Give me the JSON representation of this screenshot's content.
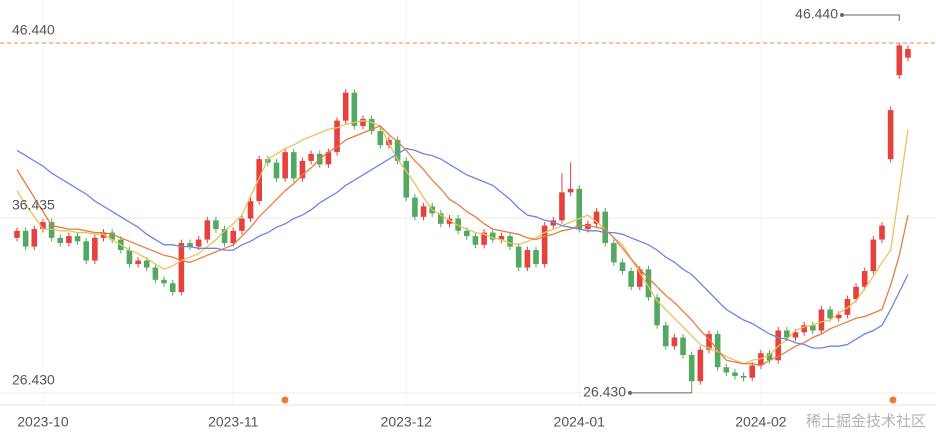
{
  "chart_data": {
    "type": "candlestick",
    "categories": [
      null,
      null,
      null,
      "2023-10",
      null,
      null,
      null,
      null,
      null,
      null,
      null,
      null,
      null,
      null,
      null,
      null,
      null,
      null,
      null,
      null,
      null,
      null,
      null,
      null,
      null,
      "2023-11",
      null,
      null,
      null,
      null,
      null,
      null,
      null,
      null,
      null,
      null,
      null,
      null,
      null,
      null,
      null,
      null,
      null,
      null,
      null,
      "2023-12",
      null,
      null,
      null,
      null,
      null,
      null,
      null,
      null,
      null,
      null,
      null,
      null,
      null,
      null,
      null,
      null,
      null,
      null,
      null,
      "2024-01",
      null,
      null,
      null,
      null,
      null,
      null,
      null,
      null,
      null,
      null,
      null,
      null,
      null,
      null,
      null,
      null,
      null,
      null,
      null,
      null,
      "2024-02",
      null,
      null,
      null,
      null,
      null,
      null,
      null,
      null,
      null,
      null,
      null,
      null,
      null,
      null,
      null,
      null,
      null
    ],
    "open": [
      35.3,
      35.7,
      34.8,
      35.8,
      36.2,
      35.3,
      35.0,
      35.4,
      35.1,
      34.0,
      35.3,
      35.6,
      35.2,
      34.6,
      33.8,
      34.0,
      33.6,
      32.9,
      32.7,
      32.2,
      35.0,
      34.8,
      35.2,
      36.3,
      35.8,
      35.0,
      35.7,
      36.4,
      37.4,
      39.8,
      39.6,
      38.7,
      40.2,
      38.7,
      39.7,
      40.1,
      39.5,
      40.2,
      42.0,
      43.6,
      41.7,
      42.1,
      41.4,
      40.6,
      40.9,
      39.7,
      37.6,
      36.5,
      37.1,
      36.7,
      36.1,
      36.4,
      35.7,
      35.4,
      34.9,
      35.6,
      35.2,
      35.4,
      34.8,
      33.6,
      34.6,
      33.8,
      36.0,
      36.3,
      37.9,
      38.1,
      35.8,
      36.1,
      36.8,
      35.0,
      33.9,
      33.4,
      32.5,
      33.5,
      31.9,
      30.3,
      29.1,
      29.6,
      28.6,
      27.1,
      28.9,
      29.8,
      27.9,
      27.6,
      27.4,
      27.3,
      28.0,
      28.7,
      28.3,
      30.0,
      29.6,
      29.9,
      30.3,
      30.0,
      31.2,
      30.7,
      30.9,
      31.8,
      32.5,
      33.4,
      35.2,
      39.8,
      44.6,
      45.6
    ],
    "high": [
      35.9,
      35.9,
      36.0,
      36.4,
      36.4,
      35.5,
      35.6,
      35.6,
      35.3,
      35.5,
      35.8,
      35.8,
      35.4,
      34.8,
      34.2,
      34.2,
      33.8,
      33.1,
      32.9,
      35.2,
      35.2,
      35.4,
      36.5,
      36.5,
      36.0,
      35.9,
      36.6,
      37.6,
      40.0,
      40.0,
      39.8,
      40.4,
      40.4,
      39.9,
      40.3,
      40.3,
      40.4,
      42.2,
      43.8,
      43.8,
      42.3,
      42.3,
      41.6,
      41.1,
      41.1,
      39.9,
      37.8,
      37.3,
      37.3,
      36.9,
      36.6,
      36.6,
      35.9,
      35.6,
      35.8,
      35.8,
      35.6,
      35.6,
      35.0,
      34.8,
      34.8,
      36.2,
      36.5,
      39.0,
      39.6,
      38.3,
      36.3,
      37.0,
      37.0,
      35.2,
      34.1,
      33.6,
      33.7,
      33.7,
      32.1,
      30.5,
      29.8,
      29.8,
      28.8,
      29.1,
      30.0,
      30.0,
      28.1,
      27.8,
      27.6,
      28.2,
      28.9,
      28.9,
      30.2,
      30.2,
      30.1,
      30.5,
      30.5,
      31.4,
      31.4,
      31.1,
      32.0,
      32.7,
      33.6,
      35.4,
      36.2,
      42.8,
      46.44,
      46.3
    ],
    "low": [
      35.1,
      34.6,
      34.6,
      35.6,
      35.1,
      34.8,
      34.8,
      34.9,
      33.8,
      33.8,
      35.1,
      35.0,
      34.4,
      33.6,
      33.6,
      33.4,
      32.7,
      32.5,
      32.0,
      32.0,
      34.6,
      34.6,
      35.0,
      35.6,
      34.8,
      34.8,
      35.5,
      36.2,
      37.2,
      39.4,
      38.5,
      38.5,
      38.5,
      38.5,
      39.5,
      39.3,
      39.3,
      40.0,
      41.8,
      41.5,
      41.5,
      41.2,
      40.4,
      40.4,
      39.5,
      37.4,
      36.3,
      36.3,
      36.5,
      35.9,
      35.9,
      35.5,
      35.2,
      34.7,
      34.7,
      35.0,
      35.0,
      34.6,
      33.4,
      33.4,
      33.6,
      33.6,
      35.8,
      36.1,
      37.7,
      35.6,
      35.6,
      35.9,
      34.8,
      33.7,
      33.2,
      32.3,
      32.3,
      31.7,
      30.1,
      28.9,
      28.9,
      28.4,
      26.43,
      26.9,
      28.7,
      27.7,
      27.4,
      27.2,
      27.1,
      27.1,
      27.8,
      28.1,
      28.1,
      29.4,
      29.4,
      29.7,
      29.8,
      29.8,
      30.5,
      30.5,
      30.7,
      31.6,
      32.3,
      33.2,
      35.0,
      39.6,
      44.4,
      45.4
    ],
    "close": [
      35.7,
      34.8,
      35.8,
      36.2,
      35.3,
      35.0,
      35.4,
      35.1,
      34.0,
      35.3,
      35.6,
      35.2,
      34.6,
      33.8,
      34.0,
      33.6,
      32.9,
      32.7,
      32.2,
      35.0,
      34.8,
      35.2,
      36.3,
      35.8,
      35.0,
      35.7,
      36.4,
      37.4,
      39.8,
      39.6,
      38.7,
      40.2,
      38.7,
      39.7,
      40.1,
      39.5,
      40.2,
      42.0,
      43.6,
      41.7,
      42.1,
      41.4,
      40.6,
      40.9,
      39.7,
      37.6,
      36.5,
      37.1,
      36.7,
      36.1,
      36.4,
      35.7,
      35.4,
      34.9,
      35.6,
      35.2,
      35.4,
      34.8,
      33.6,
      34.6,
      33.8,
      36.0,
      36.3,
      37.9,
      38.1,
      35.8,
      36.1,
      36.8,
      35.0,
      33.9,
      33.4,
      32.5,
      33.5,
      31.9,
      30.3,
      29.1,
      29.6,
      28.6,
      27.1,
      28.9,
      29.8,
      27.9,
      27.6,
      27.4,
      27.3,
      28.0,
      28.7,
      28.3,
      30.0,
      29.6,
      29.9,
      30.3,
      30.0,
      31.2,
      30.7,
      30.9,
      31.8,
      32.5,
      33.4,
      35.2,
      36.0,
      42.6,
      46.3,
      46.1
    ],
    "up_color": "#e5413d",
    "down_color": "#53a862",
    "lines": [
      {
        "color": "#e8c35a",
        "values": [
          38.0,
          37.2,
          36.5,
          35.8,
          35.8,
          35.7,
          35.7,
          35.6,
          35.6,
          35.5,
          35.5,
          35.2,
          34.9,
          34.6,
          34.4,
          34.1,
          33.8,
          33.5,
          33.7,
          34.0,
          34.2,
          34.4,
          34.8,
          35.2,
          35.7,
          36.1,
          36.6,
          37.7,
          38.7,
          39.8,
          40.1,
          40.4,
          40.6,
          40.9,
          41.1,
          41.3,
          41.5,
          41.6,
          41.8,
          41.9,
          42.0,
          41.9,
          41.7,
          40.7,
          39.8,
          39.1,
          38.4,
          37.6,
          36.9,
          36.6,
          36.3,
          36.0,
          35.8,
          35.6,
          35.5,
          35.3,
          35.2,
          35.0,
          34.9,
          35.1,
          35.3,
          35.6,
          35.8,
          36.0,
          36.2,
          36.4,
          36.6,
          36.2,
          35.8,
          35.3,
          34.9,
          34.1,
          33.3,
          32.5,
          31.7,
          31.2,
          30.7,
          30.2,
          29.7,
          29.2,
          29.0,
          28.8,
          28.5,
          28.3,
          28.1,
          28.3,
          28.4,
          28.6,
          29.1,
          29.5,
          30.0,
          30.2,
          30.3,
          30.5,
          30.6,
          31.0,
          31.3,
          31.7,
          32.4,
          33.1,
          33.9,
          34.6,
          38.0,
          41.5
        ]
      },
      {
        "color": "#e77d3e",
        "values": [
          39.2,
          38.4,
          37.6,
          36.8,
          36.0,
          35.9,
          35.8,
          35.8,
          35.7,
          35.6,
          35.6,
          35.5,
          35.3,
          35.1,
          34.9,
          34.7,
          34.5,
          34.3,
          34.2,
          34.0,
          33.9,
          34.1,
          34.3,
          34.5,
          34.7,
          34.9,
          35.4,
          35.9,
          36.5,
          37.0,
          37.5,
          38.0,
          38.4,
          38.9,
          39.3,
          39.8,
          40.2,
          40.5,
          40.9,
          41.1,
          41.3,
          41.5,
          41.7,
          41.2,
          40.8,
          40.3,
          39.7,
          39.2,
          38.6,
          38.1,
          37.5,
          37.2,
          36.8,
          36.5,
          36.1,
          35.8,
          35.7,
          35.6,
          35.5,
          35.3,
          35.2,
          35.4,
          35.5,
          35.7,
          35.8,
          36.0,
          36.0,
          35.9,
          35.8,
          35.3,
          34.7,
          34.1,
          33.5,
          33.0,
          32.5,
          32.0,
          31.6,
          31.1,
          30.6,
          30.0,
          29.5,
          28.9,
          28.3,
          28.2,
          28.1,
          28.1,
          28.0,
          28.3,
          28.5,
          28.8,
          29.1,
          29.3,
          29.6,
          29.8,
          30.1,
          30.3,
          30.5,
          30.7,
          30.8,
          31.0,
          31.2,
          32.6,
          34.3,
          36.6
        ]
      },
      {
        "color": "#6c86e2",
        "values": [
          40.3,
          40.0,
          39.7,
          39.4,
          39.0,
          38.7,
          38.4,
          38.1,
          37.8,
          37.4,
          37.1,
          36.8,
          36.5,
          36.2,
          35.9,
          35.5,
          35.2,
          34.9,
          34.9,
          34.8,
          34.8,
          34.7,
          34.7,
          34.7,
          34.6,
          34.6,
          34.9,
          35.1,
          35.4,
          35.6,
          35.9,
          36.1,
          36.4,
          36.6,
          36.9,
          37.3,
          37.6,
          37.9,
          38.3,
          38.6,
          38.9,
          39.2,
          39.5,
          39.8,
          40.1,
          40.4,
          40.3,
          40.1,
          40.0,
          39.8,
          39.5,
          39.2,
          38.9,
          38.7,
          38.5,
          38.3,
          37.9,
          37.5,
          37.0,
          36.6,
          36.5,
          36.3,
          36.2,
          36.0,
          35.9,
          35.8,
          35.7,
          35.7,
          35.6,
          35.6,
          35.5,
          35.3,
          35.1,
          34.9,
          34.6,
          34.2,
          33.9,
          33.5,
          33.2,
          32.7,
          32.2,
          31.7,
          31.2,
          30.9,
          30.6,
          30.4,
          30.1,
          29.8,
          29.6,
          29.5,
          29.3,
          29.2,
          29.0,
          29.0,
          29.1,
          29.1,
          29.2,
          29.5,
          29.8,
          30.0,
          30.3,
          31.2,
          32.2,
          33.2
        ]
      }
    ],
    "max_label": "46.440",
    "min_label": "26.430",
    "ylim": [
      25.74,
      48.9
    ],
    "yticks": [
      {
        "value": 26.43,
        "label": "26.430"
      },
      {
        "value": 36.435,
        "label": "36.435"
      },
      {
        "value": 46.44,
        "label": "46.440"
      }
    ],
    "grid": true,
    "watermark": "稀土掘金技术社区"
  }
}
